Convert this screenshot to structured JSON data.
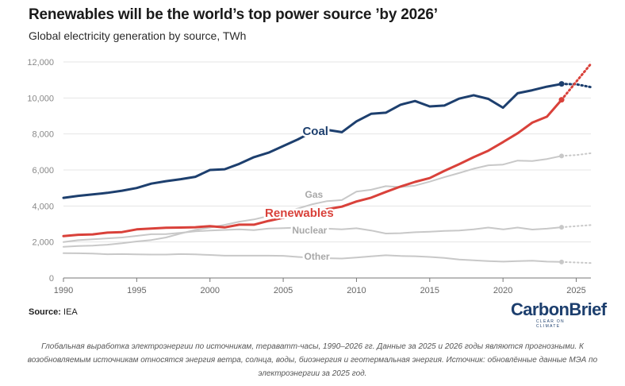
{
  "header": {
    "title": "Renewables will be the world’s top power source ’by 2026’",
    "subtitle": "Global electricity generation by source, TWh"
  },
  "source": {
    "label": "Source:",
    "value": "IEA"
  },
  "logo": {
    "text": "CarbonBrief",
    "tagline": "CLEAR ON CLIMATE"
  },
  "caption": "Глобальная выработка электроэнергии по источникам, тераватт-часы, 1990–2026 гг. Данные за 2025 и 2026 годы являются прогнозными. К возобновляемым источникам относятся энергия ветра, солнца, воды, биоэнергия и геотермальная энергия. Источник: обновлённые данные МЭА по электроэнергии за 2025 год.",
  "colors": {
    "coal": "#1d3f6e",
    "renewables": "#d9413a",
    "gray": "#c8c8c8",
    "grid": "#e5e5e5",
    "axis": "#777777"
  },
  "chart_data": {
    "type": "line",
    "xlim": [
      1990,
      2026
    ],
    "ylim": [
      0,
      12000
    ],
    "yticks": [
      0,
      2000,
      4000,
      6000,
      8000,
      10000,
      12000
    ],
    "ytick_labels": [
      "0",
      "2,000",
      "4,000",
      "6,000",
      "8,000",
      "10,000",
      "12,000"
    ],
    "xticks": [
      1990,
      1995,
      2000,
      2005,
      2010,
      2015,
      2020,
      2025
    ],
    "xtick_labels": [
      "1990",
      "1995",
      "2000",
      "2005",
      "2010",
      "2015",
      "2020",
      "2025"
    ],
    "x": [
      1990,
      1991,
      1992,
      1993,
      1994,
      1995,
      1996,
      1997,
      1998,
      1999,
      2000,
      2001,
      2002,
      2003,
      2004,
      2005,
      2006,
      2007,
      2008,
      2009,
      2010,
      2011,
      2012,
      2013,
      2014,
      2015,
      2016,
      2017,
      2018,
      2019,
      2020,
      2021,
      2022,
      2023,
      2024
    ],
    "forecast_x": [
      2024,
      2025,
      2026
    ],
    "series": [
      {
        "name": "Other",
        "label": "Other",
        "highlight": false,
        "values": [
          1380,
          1370,
          1360,
          1320,
          1330,
          1310,
          1300,
          1300,
          1330,
          1310,
          1280,
          1240,
          1240,
          1240,
          1240,
          1230,
          1170,
          1120,
          1100,
          1080,
          1140,
          1200,
          1260,
          1220,
          1210,
          1170,
          1110,
          1030,
          980,
          940,
          910,
          940,
          960,
          910,
          890
        ],
        "forecast": [
          890,
          860,
          830
        ],
        "label_at": [
          2007.3,
          1210
        ]
      },
      {
        "name": "Nuclear",
        "label": "Nuclear",
        "highlight": false,
        "values": [
          2000,
          2100,
          2150,
          2200,
          2250,
          2340,
          2430,
          2440,
          2510,
          2590,
          2640,
          2670,
          2700,
          2660,
          2750,
          2770,
          2800,
          2750,
          2740,
          2700,
          2760,
          2640,
          2470,
          2490,
          2540,
          2570,
          2610,
          2640,
          2700,
          2800,
          2700,
          2800,
          2690,
          2740,
          2820
        ],
        "forecast": [
          2820,
          2880,
          2940
        ],
        "label_at": [
          2006.8,
          2650
        ]
      },
      {
        "name": "Gas",
        "label": "Gas",
        "highlight": false,
        "values": [
          1730,
          1780,
          1800,
          1850,
          1930,
          2030,
          2110,
          2250,
          2470,
          2670,
          2800,
          2950,
          3130,
          3250,
          3440,
          3650,
          3860,
          4100,
          4270,
          4330,
          4800,
          4900,
          5100,
          5050,
          5130,
          5350,
          5600,
          5830,
          6070,
          6260,
          6300,
          6520,
          6500,
          6610,
          6780
        ],
        "forecast": [
          6780,
          6830,
          6930
        ],
        "label_at": [
          2007.1,
          4640
        ]
      },
      {
        "name": "Coal",
        "label": "Coal",
        "highlight": true,
        "values": [
          4450,
          4560,
          4640,
          4730,
          4850,
          5000,
          5240,
          5380,
          5490,
          5620,
          6000,
          6040,
          6340,
          6710,
          6960,
          7330,
          7700,
          8120,
          8230,
          8100,
          8700,
          9120,
          9180,
          9620,
          9830,
          9530,
          9580,
          9960,
          10150,
          9950,
          9460,
          10260,
          10430,
          10630,
          10780
        ],
        "forecast": [
          10780,
          10760,
          10600
        ],
        "label_at": [
          2007.2,
          8170
        ]
      },
      {
        "name": "Renewables",
        "label": "Renewables",
        "highlight": true,
        "values": [
          2330,
          2400,
          2420,
          2520,
          2550,
          2700,
          2750,
          2790,
          2800,
          2820,
          2880,
          2810,
          2960,
          2960,
          3170,
          3350,
          3470,
          3600,
          3820,
          3960,
          4250,
          4460,
          4780,
          5080,
          5340,
          5550,
          5950,
          6320,
          6710,
          7070,
          7550,
          8040,
          8630,
          8960,
          9900
        ],
        "forecast": [
          9900,
          10900,
          11900
        ],
        "label_at": [
          2006.1,
          3630
        ]
      }
    ]
  }
}
